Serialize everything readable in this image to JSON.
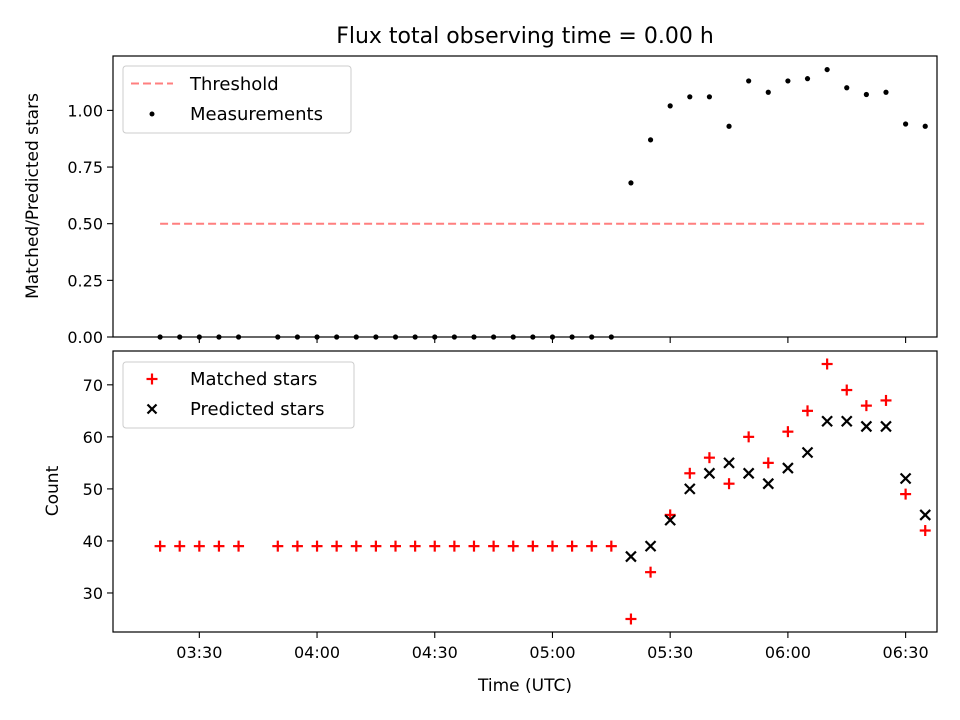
{
  "figure": {
    "title": "Flux total observing time = 0.00 h",
    "xlabel": "Time (UTC)"
  },
  "chart_data": [
    {
      "type": "scatter",
      "panel": "top",
      "ylabel": "Matched/Predicted stars",
      "xlim": [
        "03:08",
        "06:38"
      ],
      "ylim": [
        0,
        1.24
      ],
      "yticks": [
        0.0,
        0.25,
        0.5,
        0.75,
        1.0
      ],
      "ytick_labels": [
        "0.00",
        "0.25",
        "0.50",
        "0.75",
        "1.00"
      ],
      "xticks": [
        "03:30",
        "04:00",
        "04:30",
        "05:00",
        "05:30",
        "06:00",
        "06:30"
      ],
      "legend_position": "top-left",
      "series": [
        {
          "name": "Threshold",
          "kind": "dashed-line",
          "color": "#ff7f7f",
          "x": [
            "03:20",
            "06:35"
          ],
          "y": [
            0.5,
            0.5
          ]
        },
        {
          "name": "Measurements",
          "kind": "dot",
          "color": "#000000",
          "x": [
            "03:20",
            "03:25",
            "03:30",
            "03:35",
            "03:40",
            "03:50",
            "03:55",
            "04:00",
            "04:05",
            "04:10",
            "04:15",
            "04:20",
            "04:25",
            "04:30",
            "04:35",
            "04:40",
            "04:45",
            "04:50",
            "04:55",
            "05:00",
            "05:05",
            "05:10",
            "05:15",
            "05:20",
            "05:25",
            "05:30",
            "05:35",
            "05:40",
            "05:45",
            "05:50",
            "05:55",
            "06:00",
            "06:05",
            "06:10",
            "06:15",
            "06:20",
            "06:25",
            "06:30",
            "06:35"
          ],
          "y": [
            0,
            0,
            0,
            0,
            0,
            0,
            0,
            0,
            0,
            0,
            0,
            0,
            0,
            0,
            0,
            0,
            0,
            0,
            0,
            0,
            0,
            0,
            0,
            0.68,
            0.87,
            1.02,
            1.06,
            1.06,
            0.93,
            1.13,
            1.08,
            1.13,
            1.14,
            1.18,
            1.1,
            1.07,
            1.08,
            0.94,
            0.93
          ]
        }
      ]
    },
    {
      "type": "scatter",
      "panel": "bottom",
      "ylabel": "Count",
      "xlabel": "Time (UTC)",
      "xlim": [
        "03:08",
        "06:38"
      ],
      "ylim": [
        22.5,
        76.5
      ],
      "yticks": [
        30,
        40,
        50,
        60,
        70
      ],
      "ytick_labels": [
        "30",
        "40",
        "50",
        "60",
        "70"
      ],
      "xticks": [
        "03:30",
        "04:00",
        "04:30",
        "05:00",
        "05:30",
        "06:00",
        "06:30"
      ],
      "xtick_labels": [
        "03:30",
        "04:00",
        "04:30",
        "05:00",
        "05:30",
        "06:00",
        "06:30"
      ],
      "legend_position": "top-left",
      "series": [
        {
          "name": "Matched stars",
          "kind": "plus",
          "color": "#ff0000",
          "x": [
            "03:20",
            "03:25",
            "03:30",
            "03:35",
            "03:40",
            "03:50",
            "03:55",
            "04:00",
            "04:05",
            "04:10",
            "04:15",
            "04:20",
            "04:25",
            "04:30",
            "04:35",
            "04:40",
            "04:45",
            "04:50",
            "04:55",
            "05:00",
            "05:05",
            "05:10",
            "05:15",
            "05:20",
            "05:25",
            "05:30",
            "05:35",
            "05:40",
            "05:45",
            "05:50",
            "05:55",
            "06:00",
            "06:05",
            "06:10",
            "06:15",
            "06:20",
            "06:25",
            "06:30",
            "06:35"
          ],
          "y": [
            39,
            39,
            39,
            39,
            39,
            39,
            39,
            39,
            39,
            39,
            39,
            39,
            39,
            39,
            39,
            39,
            39,
            39,
            39,
            39,
            39,
            39,
            39,
            25,
            34,
            45,
            53,
            56,
            51,
            60,
            55,
            61,
            65,
            74,
            69,
            66,
            67,
            49,
            42
          ]
        },
        {
          "name": "Predicted stars",
          "kind": "x",
          "color": "#000000",
          "x": [
            "05:20",
            "05:25",
            "05:30",
            "05:35",
            "05:40",
            "05:45",
            "05:50",
            "05:55",
            "06:00",
            "06:05",
            "06:10",
            "06:15",
            "06:20",
            "06:25",
            "06:30",
            "06:35"
          ],
          "y": [
            37,
            39,
            44,
            50,
            53,
            55,
            53,
            51,
            54,
            57,
            63,
            63,
            62,
            62,
            52,
            45
          ]
        }
      ]
    }
  ]
}
